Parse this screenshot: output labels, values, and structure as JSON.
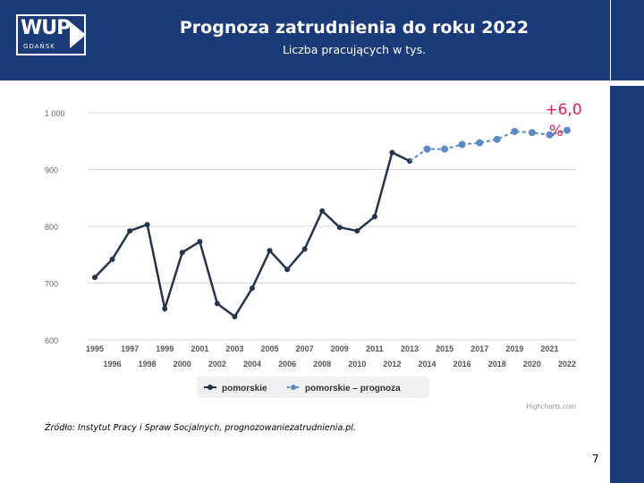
{
  "header": {
    "title": "Prognoza zatrudnienia do roku 2022",
    "subtitle": "Liczba pracujących w tys.",
    "logo_text": "WUP",
    "logo_sub": "GDAŃSK"
  },
  "annotation": {
    "line1": "+6,0",
    "line2": "%",
    "color": "#d6245a"
  },
  "source": "Źródło: Instytut Pracy i Spraw Socjalnych, prognozowaniezatrudnienia.pl.",
  "page_number": "7",
  "credit": "Highcharts.com",
  "chart_data": {
    "type": "line",
    "title": "",
    "xlabel": "",
    "ylabel": "",
    "ylim": [
      600,
      1000
    ],
    "y_ticks": [
      "600",
      "700",
      "800",
      "900",
      "1 000"
    ],
    "x": [
      1995,
      1996,
      1997,
      1998,
      1999,
      2000,
      2001,
      2002,
      2003,
      2004,
      2005,
      2006,
      2007,
      2008,
      2009,
      2010,
      2011,
      2012,
      2013,
      2014,
      2015,
      2016,
      2017,
      2018,
      2019,
      2020,
      2021,
      2022
    ],
    "x_ticks_top": [
      "1995",
      "1997",
      "1999",
      "2001",
      "2003",
      "2005",
      "2007",
      "2009",
      "2011",
      "2013",
      "2015",
      "2017",
      "2019",
      "2021"
    ],
    "x_ticks_bottom": [
      "1996",
      "1998",
      "2000",
      "2002",
      "2004",
      "2006",
      "2008",
      "2010",
      "2012",
      "2014",
      "2016",
      "2018",
      "2020",
      "2022"
    ],
    "grid": true,
    "legend_position": "bottom-center",
    "series": [
      {
        "name": "pomorskie",
        "color": "#26344a",
        "x": [
          1995,
          1996,
          1997,
          1998,
          1999,
          2000,
          2001,
          2002,
          2003,
          2004,
          2005,
          2006,
          2007,
          2008,
          2009,
          2010,
          2011,
          2012,
          2013
        ],
        "values": [
          710,
          742,
          792,
          803,
          655,
          754,
          773,
          664,
          641,
          691,
          757,
          724,
          760,
          827,
          798,
          792,
          817,
          930,
          915
        ]
      },
      {
        "name": "pomorskie – prognoza",
        "color": "#5b8ac6",
        "x": [
          2013,
          2014,
          2015,
          2016,
          2017,
          2018,
          2019,
          2020,
          2021,
          2022
        ],
        "values": [
          915,
          936,
          936,
          944,
          947,
          953,
          967,
          965,
          961,
          969
        ]
      }
    ]
  }
}
